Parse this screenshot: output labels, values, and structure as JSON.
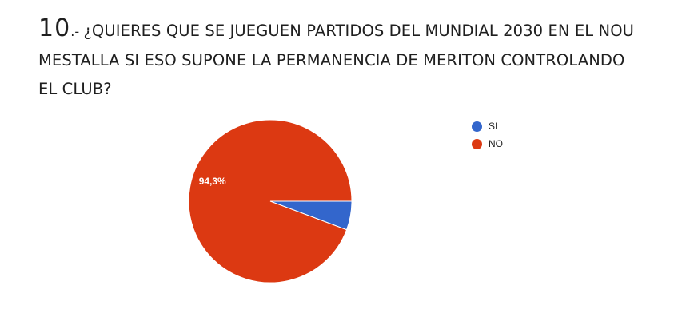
{
  "question": {
    "number": "10",
    "separator": ".- ",
    "text": "¿QUIERES QUE SE JUEGUEN PARTIDOS DEL MUNDIAL 2030 EN EL NOU MESTALLA SI ESO SUPONE LA PERMANENCIA DE MERITON CONTROLANDO EL CLUB?"
  },
  "chart_data": {
    "type": "pie",
    "title": "10.- ¿QUIERES QUE SE JUEGUEN PARTIDOS DEL MUNDIAL 2030 EN EL NOU MESTALLA SI ESO SUPONE LA PERMANENCIA DE MERITON CONTROLANDO EL CLUB?",
    "legend_position": "right",
    "slices": [
      {
        "label": "SI",
        "value": 5.7,
        "color": "#3366cc",
        "data_label": ""
      },
      {
        "label": "NO",
        "value": 94.3,
        "color": "#dc3912",
        "data_label": "94,3%"
      }
    ]
  }
}
